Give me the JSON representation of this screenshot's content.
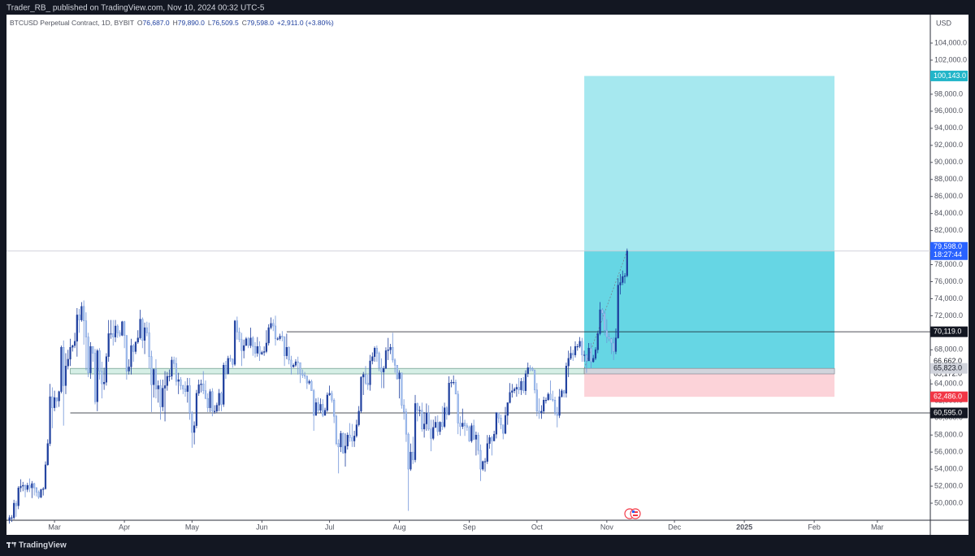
{
  "header": "Trader_RB_ published on TradingView.com, Nov 10, 2024 00:32 UTC-5",
  "footer": "TradingView",
  "chart_data": {
    "type": "candlestick",
    "legend": {
      "name": "BTCUSD Perpetual Contract, 1D, BYBIT",
      "ohlc": [
        {
          "key": "O",
          "label": "76,687.0"
        },
        {
          "key": "H",
          "label": "79,890.0"
        },
        {
          "key": "L",
          "label": "76,509.5"
        },
        {
          "key": "C",
          "label": "79,598.0"
        }
      ],
      "change": "+2,911.0 (+3.80%)"
    },
    "currency": "USD",
    "up_color": "#1e3f9e",
    "down_color": "#a9c4f0",
    "down_edge": "#6f93d8",
    "xlim": [
      -1.3,
      408.5
    ],
    "xticks": [
      {
        "value": 20,
        "label": "Mar"
      },
      {
        "value": 51,
        "label": "Apr"
      },
      {
        "value": 81,
        "label": "May"
      },
      {
        "value": 112,
        "label": "Jun"
      },
      {
        "value": 142,
        "label": "Jul"
      },
      {
        "value": 173,
        "label": "Aug"
      },
      {
        "value": 204,
        "label": "Sep"
      },
      {
        "value": 234,
        "label": "Oct"
      },
      {
        "value": 265,
        "label": "Nov"
      },
      {
        "value": 295,
        "label": "Dec"
      },
      {
        "value": 326,
        "label": "2025"
      },
      {
        "value": 357,
        "label": "Feb"
      },
      {
        "value": 385,
        "label": "Mar"
      }
    ],
    "ylim": [
      48000,
      107340
    ],
    "yticks": [
      {
        "value": 50000,
        "label": "50,000.0"
      },
      {
        "value": 52000,
        "label": "52,000.0"
      },
      {
        "value": 54000,
        "label": "54,000.0"
      },
      {
        "value": 56000,
        "label": "56,000.0"
      },
      {
        "value": 58000,
        "label": "58,000.0"
      },
      {
        "value": 60000,
        "label": "60,000.0"
      },
      {
        "value": 62000,
        "label": "62,000.0"
      },
      {
        "value": 64000,
        "label": "64,000.0"
      },
      {
        "value": 68000,
        "label": "68,000.0"
      },
      {
        "value": 72000,
        "label": "72,000.0"
      },
      {
        "value": 74000,
        "label": "74,000.0"
      },
      {
        "value": 76000,
        "label": "76,000.0"
      },
      {
        "value": 78000,
        "label": "78,000.0"
      },
      {
        "value": 80000,
        "label": "80,000.0"
      },
      {
        "value": 82000,
        "label": "82,000.0"
      },
      {
        "value": 84000,
        "label": "84,000.0"
      },
      {
        "value": 86000,
        "label": "86,000.0"
      },
      {
        "value": 88000,
        "label": "88,000.0"
      },
      {
        "value": 90000,
        "label": "90,000.0"
      },
      {
        "value": 92000,
        "label": "92,000.0"
      },
      {
        "value": 94000,
        "label": "94,000.0"
      },
      {
        "value": 96000,
        "label": "96,000.0"
      },
      {
        "value": 98000,
        "label": "98,000.0"
      },
      {
        "value": 102000,
        "label": "102,000.0"
      },
      {
        "value": 104000,
        "label": "104,000.0"
      }
    ],
    "open": [
      48000,
      48300,
      48300,
      50000,
      49700,
      51800,
      52000,
      52100,
      51600,
      52100,
      51800,
      52300,
      51800,
      51300,
      50700,
      51600,
      51700,
      54500,
      57000,
      62500,
      61200,
      62400,
      62000,
      63100,
      68300,
      63800,
      66100,
      66900,
      68300,
      68500,
      69000,
      72100,
      71500,
      73100,
      71400,
      69500,
      65300,
      68400,
      67600,
      61900,
      67900,
      65500,
      64000,
      64200,
      67200,
      69900,
      69900,
      69500,
      70800,
      70000,
      69700,
      71300,
      69700,
      65500,
      66000,
      68500,
      67800,
      68900,
      69400,
      71600,
      69100,
      70600,
      70000,
      67200,
      63900,
      65700,
      63400,
      63800,
      61300,
      63500,
      63800,
      64900,
      64900,
      66800,
      66400,
      64300,
      64500,
      63800,
      63400,
      63100,
      63800,
      60600,
      58300,
      59100,
      62900,
      63900,
      64000,
      63200,
      62300,
      61200,
      63100,
      60800,
      60800,
      61500,
      62900,
      61600,
      66200,
      65200,
      67000,
      66900,
      66300,
      71400,
      70100,
      69200,
      67900,
      68500,
      69300,
      68500,
      69400,
      68400,
      67600,
      68400,
      67500,
      67700,
      67800,
      68800,
      70600,
      71100,
      70800,
      69300,
      69300,
      69600,
      69500,
      67300,
      68300,
      66800,
      66000,
      66200,
      66600,
      66500,
      65200,
      65000,
      64900,
      64100,
      64300,
      63200,
      60300,
      61800,
      60900,
      61600,
      60300,
      60900,
      62700,
      62900,
      62100,
      60200,
      57000,
      56600,
      58200,
      55900,
      56700,
      58000,
      57700,
      57300,
      57900,
      59200,
      60800,
      64800,
      65100,
      64100,
      63900,
      66700,
      67200,
      68200,
      67600,
      65900,
      65400,
      65800,
      67900,
      68000,
      68300,
      66800,
      66200,
      64600,
      65300,
      61500,
      60700,
      58100,
      54000,
      56000,
      55100,
      61700,
      60900,
      60900,
      58700,
      59300,
      60600,
      58700,
      57600,
      58900,
      59500,
      58400,
      59500,
      59000,
      61200,
      60400,
      64100,
      64200,
      64200,
      62800,
      59400,
      59000,
      59400,
      59100,
      58900,
      57300,
      59100,
      57500,
      58000,
      56200,
      54000,
      54900,
      54900,
      57000,
      57700,
      57300,
      58100,
      60600,
      60000,
      59200,
      58200,
      60300,
      61800,
      63000,
      63200,
      63400,
      63600,
      63300,
      64300,
      63200,
      65200,
      65900,
      65800,
      65600,
      63300,
      60800,
      60600,
      60800,
      62100,
      62100,
      62800,
      62200,
      62100,
      60600,
      60300,
      62500,
      63200,
      62900,
      66100,
      67000,
      67600,
      67400,
      68400,
      68400,
      69000,
      67400,
      67400,
      66700,
      68200,
      66600,
      67000,
      68000,
      69900,
      72700,
      72300,
      70300,
      69500,
      69300,
      68800,
      67800,
      69400,
      75600,
      75900,
      76600,
      76687
    ],
    "high": [
      48600,
      48600,
      50400,
      50300,
      52000,
      52800,
      52500,
      52200,
      52400,
      52900,
      52600,
      52400,
      51900,
      51500,
      51700,
      51900,
      54900,
      57500,
      64000,
      63600,
      63200,
      62400,
      63200,
      68500,
      69100,
      67600,
      68000,
      69300,
      68600,
      70000,
      72900,
      72800,
      73600,
      73800,
      72400,
      70000,
      68900,
      68400,
      68100,
      68100,
      68200,
      66600,
      65900,
      67600,
      71500,
      71500,
      71500,
      71500,
      71000,
      70300,
      71400,
      71400,
      69700,
      66900,
      69300,
      68700,
      69000,
      70300,
      72700,
      71800,
      71200,
      71300,
      71200,
      67900,
      65800,
      66900,
      64400,
      64500,
      64500,
      65500,
      65400,
      65700,
      67200,
      67200,
      67100,
      65300,
      64800,
      63900,
      64300,
      64700,
      64700,
      60800,
      59600,
      63300,
      64500,
      64500,
      65500,
      64400,
      62900,
      63400,
      63500,
      61500,
      61800,
      63400,
      63100,
      66500,
      66700,
      67300,
      67400,
      67000,
      71500,
      71900,
      70600,
      70000,
      69200,
      69500,
      69500,
      70600,
      69600,
      68900,
      69500,
      69000,
      67900,
      68400,
      70300,
      71000,
      71800,
      71600,
      72000,
      69500,
      69900,
      70200,
      69600,
      69900,
      68400,
      67300,
      66400,
      66900,
      67200,
      66500,
      65700,
      65400,
      65000,
      64500,
      64500,
      63400,
      62300,
      62400,
      62300,
      62200,
      61200,
      63000,
      63800,
      63200,
      62300,
      60400,
      57500,
      58500,
      58300,
      58200,
      58300,
      59400,
      59300,
      58500,
      59800,
      61400,
      64900,
      65400,
      66100,
      65100,
      67400,
      67700,
      68400,
      68500,
      67800,
      67000,
      66100,
      68300,
      69400,
      68700,
      70000,
      67000,
      66200,
      65600,
      65300,
      62200,
      61100,
      58300,
      57000,
      57800,
      62700,
      61800,
      61400,
      61800,
      60700,
      61700,
      61500,
      59800,
      59800,
      60200,
      60300,
      59600,
      61400,
      61800,
      61400,
      64900,
      64500,
      65000,
      64500,
      63200,
      60200,
      61100,
      59800,
      59400,
      59100,
      59400,
      59800,
      58400,
      58300,
      56900,
      55000,
      55300,
      58000,
      58000,
      57900,
      58500,
      60700,
      60600,
      60400,
      59200,
      61300,
      61800,
      64100,
      64000,
      63600,
      64000,
      64700,
      64700,
      64800,
      65600,
      66500,
      66200,
      66000,
      65700,
      64100,
      62300,
      61500,
      62500,
      62400,
      63000,
      64400,
      63200,
      62500,
      61300,
      63400,
      63400,
      63300,
      66500,
      67900,
      68400,
      68000,
      69000,
      68700,
      69500,
      69400,
      67900,
      67500,
      68800,
      68800,
      67400,
      68300,
      70200,
      73600,
      72900,
      72600,
      71600,
      70000,
      69400,
      69500,
      70500,
      76400,
      76900,
      77300,
      77000,
      79890
    ],
    "low": [
      47600,
      47800,
      48100,
      48400,
      49300,
      51300,
      51400,
      50700,
      51300,
      51300,
      50600,
      50900,
      50800,
      50500,
      50600,
      50900,
      51600,
      54400,
      56700,
      58800,
      60800,
      61200,
      61300,
      62900,
      59100,
      62800,
      65700,
      66100,
      67800,
      68200,
      67200,
      70000,
      71300,
      68600,
      65600,
      64800,
      64600,
      66600,
      61600,
      60800,
      64500,
      62300,
      63300,
      63800,
      66600,
      69300,
      68500,
      68900,
      69400,
      69500,
      69600,
      68200,
      64500,
      65100,
      65100,
      66600,
      67500,
      68700,
      69200,
      68200,
      67500,
      69600,
      65800,
      60700,
      62400,
      62300,
      61800,
      59800,
      60800,
      59600,
      63200,
      64300,
      64500,
      65900,
      63800,
      62800,
      63300,
      62800,
      62500,
      61800,
      59800,
      56500,
      56900,
      58800,
      62600,
      63000,
      62800,
      62200,
      60700,
      60700,
      60200,
      60500,
      60600,
      60800,
      60800,
      61300,
      64600,
      65100,
      66600,
      65900,
      66100,
      69200,
      68900,
      66100,
      67000,
      68500,
      68200,
      68200,
      67300,
      67100,
      67200,
      66700,
      67400,
      67300,
      67600,
      68500,
      70400,
      70200,
      68500,
      69100,
      69100,
      69000,
      66100,
      66900,
      66300,
      65100,
      65900,
      66000,
      65100,
      64100,
      64700,
      64600,
      63400,
      63900,
      63200,
      58500,
      60300,
      60600,
      60600,
      60100,
      60400,
      60700,
      62600,
      61800,
      59400,
      56800,
      53500,
      56000,
      55800,
      54300,
      56300,
      57200,
      56600,
      56600,
      57700,
      59000,
      60600,
      62700,
      63900,
      63300,
      63200,
      66300,
      66600,
      66600,
      65500,
      63500,
      63500,
      65800,
      66800,
      67500,
      66500,
      65300,
      64500,
      62300,
      61100,
      59800,
      57200,
      49100,
      53800,
      54600,
      54800,
      59600,
      60200,
      58400,
      57700,
      58500,
      58500,
      56100,
      57400,
      58800,
      57900,
      58000,
      58600,
      58800,
      59800,
      60300,
      63600,
      63900,
      62800,
      58100,
      57900,
      58700,
      57900,
      58500,
      57200,
      57100,
      57400,
      55600,
      55700,
      52600,
      53800,
      53700,
      54600,
      56400,
      55600,
      57300,
      57600,
      59400,
      58700,
      57500,
      58100,
      59200,
      61700,
      62400,
      62900,
      62500,
      62800,
      62700,
      62900,
      62700,
      64800,
      65500,
      65500,
      62900,
      60200,
      59900,
      59900,
      60500,
      61700,
      62100,
      62100,
      61900,
      60300,
      58900,
      60000,
      62400,
      62400,
      62400,
      64800,
      66800,
      66700,
      67100,
      67900,
      68200,
      66600,
      66600,
      65300,
      66700,
      65800,
      66500,
      66800,
      67600,
      69700,
      71400,
      69700,
      68800,
      69000,
      67500,
      66800,
      67500,
      69300,
      74500,
      75600,
      75800,
      76509.5
    ],
    "close": [
      48300,
      48300,
      50000,
      49700,
      51800,
      52000,
      52100,
      51600,
      52100,
      51800,
      52300,
      51800,
      51300,
      50700,
      51600,
      51700,
      54500,
      57000,
      62500,
      61200,
      62400,
      62000,
      63100,
      68300,
      63800,
      66100,
      66900,
      68300,
      68500,
      69000,
      72100,
      71500,
      73100,
      71400,
      69500,
      65300,
      68400,
      67600,
      61900,
      67900,
      65500,
      64000,
      64200,
      67200,
      69900,
      69900,
      69500,
      70800,
      70000,
      69700,
      71300,
      69700,
      65500,
      66000,
      68500,
      67800,
      68900,
      69400,
      71600,
      69100,
      70600,
      70000,
      67200,
      63900,
      65700,
      63400,
      63800,
      61300,
      63500,
      63800,
      64900,
      64900,
      66800,
      66400,
      64300,
      64500,
      63800,
      63400,
      63100,
      63800,
      60600,
      58300,
      59100,
      62900,
      63900,
      64000,
      63200,
      62300,
      61200,
      63100,
      60800,
      60800,
      61500,
      62900,
      61600,
      66200,
      65200,
      67000,
      66900,
      66300,
      71400,
      70100,
      69200,
      67900,
      68500,
      69300,
      68500,
      69400,
      68400,
      67600,
      68400,
      67500,
      67700,
      67800,
      68800,
      70600,
      71100,
      70800,
      69300,
      69300,
      69600,
      69500,
      67300,
      68300,
      66800,
      66000,
      66200,
      66600,
      66500,
      65200,
      65000,
      64900,
      64100,
      64300,
      63200,
      60300,
      61800,
      60900,
      61600,
      60300,
      60900,
      62700,
      62900,
      62100,
      60200,
      57000,
      56600,
      58200,
      55900,
      56700,
      58000,
      57700,
      57300,
      57900,
      59200,
      60800,
      64800,
      65100,
      64100,
      63900,
      66700,
      67200,
      68200,
      67600,
      65900,
      65400,
      65800,
      67900,
      68000,
      68300,
      66800,
      66200,
      64600,
      65300,
      61500,
      60700,
      58100,
      54000,
      56000,
      55100,
      61700,
      60900,
      60900,
      58700,
      59300,
      60600,
      58700,
      57600,
      58900,
      59500,
      58400,
      59500,
      59000,
      61200,
      60400,
      64100,
      64200,
      64200,
      62800,
      59400,
      59000,
      59400,
      59100,
      58900,
      57300,
      59100,
      57500,
      58000,
      56200,
      54000,
      54900,
      54900,
      57000,
      57700,
      57300,
      58100,
      60600,
      60000,
      59200,
      58200,
      60300,
      61800,
      63000,
      63200,
      63400,
      63600,
      63300,
      64300,
      63200,
      65200,
      65900,
      65800,
      65600,
      63300,
      60800,
      60600,
      60800,
      62100,
      62100,
      62800,
      62200,
      62100,
      60600,
      60300,
      62500,
      63200,
      62900,
      66100,
      67000,
      67600,
      67400,
      68400,
      68400,
      69000,
      67400,
      67400,
      66700,
      68200,
      66600,
      67000,
      68000,
      69900,
      72700,
      72300,
      70300,
      69500,
      69300,
      68800,
      67800,
      69400,
      75600,
      75900,
      76600,
      76687,
      79598
    ],
    "last_label": "79,598.0",
    "countdown": "18:27:44",
    "levels": [
      {
        "value": 70119,
        "label": "70,119.0",
        "x_start": 123
      },
      {
        "value": 60595,
        "label": "60,595.0",
        "x_start": 27
      }
    ],
    "zone": {
      "top": 65823,
      "bottom": 65172,
      "bottom_label": "65,172.0",
      "x_start": 27,
      "color": "#d6efe6"
    },
    "axis_marks": [
      {
        "value": 66662,
        "label": "66,662.0"
      }
    ],
    "position": {
      "x_start": 255,
      "x_end": 366,
      "entry": 65823,
      "entry_label": "65,823.0",
      "target": 100143,
      "target_label": "100,143.0",
      "stop": 62486,
      "stop_label": "62,486.0",
      "profit_color": "#a6e8ef",
      "open_color": "#66d6e4",
      "loss_color": "#fcd3d9",
      "target_tag": "#22b5c9",
      "stop_tag": "#f23645"
    }
  }
}
